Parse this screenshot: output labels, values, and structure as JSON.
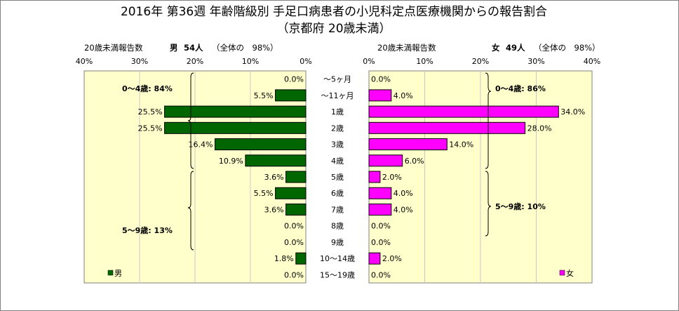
{
  "chart_data": {
    "type": "bar",
    "orientation": "horizontal-butterfly",
    "title": "2016年 第36週 年齢階級別 手足口病患者の小児科定点医療機関からの報告割合",
    "subtitle": "（京都府 20歳未満）",
    "categories": [
      "～5ヶ月",
      "～11ヶ月",
      "1歳",
      "2歳",
      "3歳",
      "4歳",
      "5歳",
      "6歳",
      "7歳",
      "8歳",
      "9歳",
      "10～14歳",
      "15～19歳"
    ],
    "xlim": [
      0,
      40
    ],
    "ticks": [
      "40%",
      "30%",
      "20%",
      "10%",
      "0%"
    ],
    "ticks_right": [
      "0%",
      "10%",
      "20%",
      "30%",
      "40%"
    ],
    "grid": true,
    "series": [
      {
        "name": "男",
        "side": "left",
        "color": "#006600",
        "values": [
          0.0,
          5.5,
          25.5,
          25.5,
          16.4,
          10.9,
          3.6,
          5.5,
          3.6,
          0.0,
          0.0,
          1.8,
          0.0
        ],
        "labels": [
          "0.0%",
          "5.5%",
          "25.5%",
          "25.5%",
          "16.4%",
          "10.9%",
          "3.6%",
          "5.5%",
          "3.6%",
          "0.0%",
          "0.0%",
          "1.8%",
          "0.0%"
        ],
        "header_count_label": "20歳未満報告数",
        "header_sex": "男",
        "header_count": "54人",
        "header_share": "（全体の　98%）",
        "group_labels": [
          "0～4歳: 84%",
          "5～9歳: 13%"
        ]
      },
      {
        "name": "女",
        "side": "right",
        "color": "#ff00ff",
        "values": [
          0.0,
          4.0,
          34.0,
          28.0,
          14.0,
          6.0,
          2.0,
          4.0,
          4.0,
          0.0,
          0.0,
          2.0,
          0.0
        ],
        "labels": [
          "0.0%",
          "4.0%",
          "34.0%",
          "28.0%",
          "14.0%",
          "6.0%",
          "2.0%",
          "4.0%",
          "4.0%",
          "0.0%",
          "0.0%",
          "2.0%",
          "0.0%"
        ],
        "header_count_label": "20歳未満報告数",
        "header_sex": "女",
        "header_count": "49人",
        "header_share": "（全体の　98%）",
        "group_labels": [
          "0～4歳: 86%",
          "5～9歳: 10%"
        ]
      }
    ],
    "legend_placement": "bottom-left / bottom-right",
    "colors": {
      "plot_bg": "#ffffcc",
      "grid": "#c8c8c8",
      "border": "#808080"
    }
  }
}
